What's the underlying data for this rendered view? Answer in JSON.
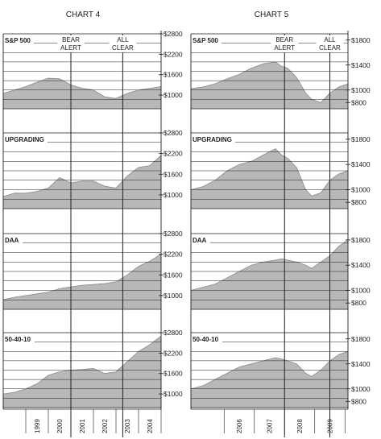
{
  "colors": {
    "fill": "#b8b8b8",
    "line": "#1e1e1e",
    "frame": "#1e1e1e",
    "text": "#222222"
  },
  "chart_data": [
    {
      "type": "area",
      "title": "CHART 4",
      "x_tick_labels": [
        "1999",
        "2000",
        "2001",
        "2002",
        "2003",
        "2004"
      ],
      "x_range": [
        1998.0,
        2005.0
      ],
      "annotations": [
        {
          "label_lines": [
            "BEAR",
            "ALERT"
          ],
          "x": 2001.0
        },
        {
          "label_lines": [
            "ALL",
            "CLEAR"
          ],
          "x": 2003.3
        }
      ],
      "panels": [
        {
          "name": "S&P 500",
          "ylim": [
            600,
            2800
          ],
          "tick_values": [
            2800,
            2200,
            1600,
            1000
          ],
          "tick_labels": [
            "$2800",
            "$2200",
            "$1600",
            "$1000"
          ],
          "x": [
            1998.0,
            1998.5,
            1999.0,
            1999.5,
            2000.0,
            2000.5,
            2001.0,
            2001.5,
            2002.0,
            2002.5,
            2003.0,
            2003.5,
            2004.0,
            2004.5,
            2005.0
          ],
          "values": [
            1050,
            1150,
            1250,
            1380,
            1500,
            1480,
            1300,
            1200,
            1150,
            950,
            900,
            1050,
            1150,
            1200,
            1250
          ]
        },
        {
          "name": "UPGRADING",
          "ylim": [
            600,
            2800
          ],
          "tick_values": [
            2800,
            2200,
            1600,
            1000
          ],
          "tick_labels": [
            "$2800",
            "$2200",
            "$1600",
            "$1000"
          ],
          "x": [
            1998.0,
            1998.5,
            1999.0,
            1999.5,
            2000.0,
            2000.5,
            2001.0,
            2001.5,
            2002.0,
            2002.5,
            2003.0,
            2003.5,
            2004.0,
            2004.5,
            2005.0
          ],
          "values": [
            950,
            1050,
            1050,
            1100,
            1200,
            1500,
            1350,
            1400,
            1400,
            1250,
            1200,
            1550,
            1800,
            1850,
            2150
          ]
        },
        {
          "name": "DAA",
          "ylim": [
            600,
            2800
          ],
          "tick_values": [
            2800,
            2200,
            1600,
            1000
          ],
          "tick_labels": [
            "$2800",
            "$2200",
            "$1600",
            "$1000"
          ],
          "x": [
            1998.0,
            1998.5,
            1999.0,
            1999.5,
            2000.0,
            2000.5,
            2001.0,
            2001.5,
            2002.0,
            2002.5,
            2003.0,
            2003.5,
            2004.0,
            2004.5,
            2005.0
          ],
          "values": [
            880,
            950,
            1000,
            1050,
            1100,
            1200,
            1250,
            1300,
            1320,
            1350,
            1400,
            1600,
            1850,
            2000,
            2200
          ]
        },
        {
          "name": "50-40-10",
          "ylim": [
            600,
            2800
          ],
          "tick_values": [
            2800,
            2200,
            1600,
            1000
          ],
          "tick_labels": [
            "$2800",
            "$2200",
            "$1600",
            "$1000"
          ],
          "x": [
            1998.0,
            1998.5,
            1999.0,
            1999.5,
            2000.0,
            2000.5,
            2001.0,
            2001.5,
            2002.0,
            2002.5,
            2003.0,
            2003.5,
            2004.0,
            2004.5,
            2005.0
          ],
          "values": [
            1000,
            1050,
            1150,
            1300,
            1550,
            1650,
            1700,
            1720,
            1750,
            1600,
            1650,
            1950,
            2250,
            2450,
            2700
          ]
        }
      ]
    },
    {
      "type": "area",
      "title": "CHART 5",
      "x_tick_labels": [
        "2006",
        "2007",
        "2008",
        "2009"
      ],
      "x_range": [
        2004.9,
        2010.1
      ],
      "annotations": [
        {
          "label_lines": [
            "BEAR",
            "ALERT"
          ],
          "x": 2008.0
        },
        {
          "label_lines": [
            "ALL",
            "CLEAR"
          ],
          "x": 2009.5
        }
      ],
      "panels": [
        {
          "name": "S&P 500",
          "ylim": [
            700,
            1900
          ],
          "tick_values": [
            1800,
            1400,
            1000,
            800
          ],
          "tick_labels": [
            "$1800",
            "$1400",
            "$1000",
            "$800"
          ],
          "x": [
            2004.9,
            2005.3,
            2005.7,
            2006.1,
            2006.5,
            2006.9,
            2007.3,
            2007.7,
            2007.9,
            2008.1,
            2008.4,
            2008.7,
            2008.9,
            2009.2,
            2009.5,
            2009.8,
            2010.1
          ],
          "values": [
            1020,
            1050,
            1100,
            1180,
            1250,
            1350,
            1420,
            1450,
            1380,
            1350,
            1200,
            950,
            850,
            800,
            950,
            1050,
            1100
          ]
        },
        {
          "name": "UPGRADING",
          "ylim": [
            700,
            1900
          ],
          "tick_values": [
            1800,
            1400,
            1000,
            800
          ],
          "tick_labels": [
            "$1800",
            "$1400",
            "$1000",
            "$800"
          ],
          "x": [
            2004.9,
            2005.3,
            2005.7,
            2006.1,
            2006.5,
            2006.9,
            2007.3,
            2007.7,
            2007.9,
            2008.1,
            2008.4,
            2008.7,
            2008.9,
            2009.2,
            2009.5,
            2009.8,
            2010.1
          ],
          "values": [
            1000,
            1050,
            1150,
            1300,
            1400,
            1450,
            1550,
            1650,
            1550,
            1500,
            1350,
            1000,
            900,
            950,
            1150,
            1250,
            1300
          ]
        },
        {
          "name": "DAA",
          "ylim": [
            700,
            1900
          ],
          "tick_values": [
            1800,
            1400,
            1000,
            800
          ],
          "tick_labels": [
            "$1800",
            "$1400",
            "$1000",
            "$800"
          ],
          "x": [
            2004.9,
            2005.3,
            2005.7,
            2006.1,
            2006.5,
            2006.9,
            2007.3,
            2007.7,
            2007.9,
            2008.1,
            2008.4,
            2008.7,
            2008.9,
            2009.2,
            2009.5,
            2009.8,
            2010.1
          ],
          "values": [
            1000,
            1050,
            1100,
            1200,
            1300,
            1400,
            1450,
            1480,
            1500,
            1480,
            1450,
            1400,
            1350,
            1450,
            1550,
            1700,
            1800
          ]
        },
        {
          "name": "50-40-10",
          "ylim": [
            700,
            1900
          ],
          "tick_values": [
            1800,
            1400,
            1000,
            800
          ],
          "tick_labels": [
            "$1800",
            "$1400",
            "$1000",
            "$800"
          ],
          "x": [
            2004.9,
            2005.3,
            2005.7,
            2006.1,
            2006.5,
            2006.9,
            2007.3,
            2007.7,
            2007.9,
            2008.1,
            2008.4,
            2008.7,
            2008.9,
            2009.2,
            2009.5,
            2009.8,
            2010.1
          ],
          "values": [
            1000,
            1050,
            1150,
            1250,
            1350,
            1400,
            1450,
            1500,
            1480,
            1450,
            1400,
            1250,
            1200,
            1300,
            1450,
            1550,
            1600
          ]
        }
      ]
    }
  ]
}
